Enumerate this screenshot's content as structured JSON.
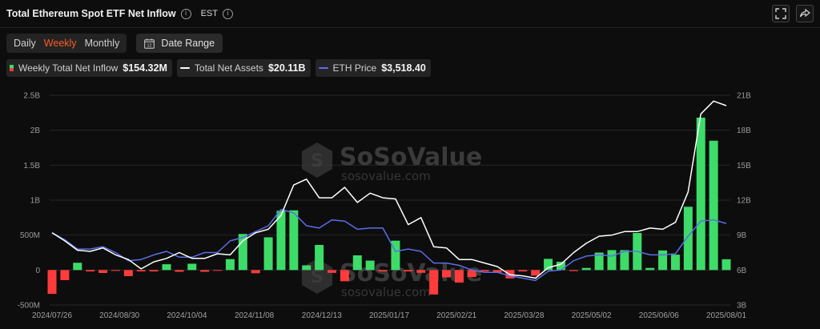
{
  "header": {
    "title": "Total Ethereum Spot ETF Net Inflow",
    "timezone": "EST"
  },
  "toolbar": {
    "tabs": [
      {
        "label": "Daily",
        "active": false
      },
      {
        "label": "Weekly",
        "active": true
      },
      {
        "label": "Monthly",
        "active": false
      }
    ],
    "date_range_label": "Date Range",
    "calendar_day": "12"
  },
  "legend": {
    "inflow": {
      "label": "Weekly Total Net Inflow",
      "value": "$154.32M"
    },
    "assets": {
      "label": "Total Net Assets",
      "value": "$20.11B"
    },
    "price": {
      "label": "ETH Price",
      "value": "$3,518.40"
    }
  },
  "watermark": {
    "brand": "SoSoValue",
    "url": "sosovalue.com"
  },
  "colors": {
    "positive": "#3ddc68",
    "negative": "#ff3b3b",
    "assets_line": "#ffffff",
    "price_line": "#5b6ee8",
    "accent": "#ff5a2a"
  },
  "chart_data": {
    "type": "bar",
    "left_axis": {
      "ticks": [
        "2.5B",
        "2B",
        "1.5B",
        "1B",
        "500M",
        "0",
        "-500M"
      ],
      "range": [
        -500000000,
        2500000000
      ]
    },
    "right_axis": {
      "ticks": [
        "21B",
        "18B",
        "15B",
        "12B",
        "9B",
        "6B",
        "3B"
      ],
      "range": [
        3000000000,
        21000000000
      ]
    },
    "x_tick_labels": [
      "2024/07/26",
      "2024/08/30",
      "2024/10/04",
      "2024/11/08",
      "2024/12/13",
      "2025/01/17",
      "2025/02/21",
      "2025/03/28",
      "2025/05/02",
      "2025/06/06",
      "2025/08/01"
    ],
    "series": [
      {
        "name": "Weekly Total Net Inflow",
        "axis": "left",
        "values": [
          -341000000,
          -145000000,
          104000000,
          -20000000,
          -42000000,
          -12000000,
          -87000000,
          -20000000,
          -20000000,
          83000000,
          -25000000,
          90000000,
          -25000000,
          -10000000,
          156000000,
          516000000,
          -46000000,
          468000000,
          848000000,
          854000000,
          67000000,
          359000000,
          -40000000,
          -160000000,
          210000000,
          135000000,
          -20000000,
          420000000,
          -20000000,
          -40000000,
          -350000000,
          -105000000,
          -180000000,
          -100000000,
          -20000000,
          -40000000,
          -120000000,
          -20000000,
          -80000000,
          160000000,
          118000000,
          -15000000,
          30000000,
          250000000,
          285000000,
          285000000,
          530000000,
          30000000,
          280000000,
          220000000,
          905000000,
          2180000000,
          1850000000,
          154320000
        ]
      },
      {
        "name": "Total Net Assets",
        "axis": "right",
        "values": [
          9200000000.0,
          8500000000.0,
          7700000000.0,
          7600000000.0,
          7900000000.0,
          7300000000.0,
          6900000000.0,
          6100000000.0,
          6700000000.0,
          7000000000.0,
          7500000000.0,
          7000000000.0,
          7000000000.0,
          7400000000.0,
          7300000000.0,
          8500000000.0,
          9200000000.0,
          9500000000.0,
          10700000000.0,
          13300000000.0,
          13800000000.0,
          12200000000.0,
          12200000000.0,
          13100000000.0,
          11800000000.0,
          12600000000.0,
          12200000000.0,
          12100000000.0,
          9900000000.0,
          10500000000.0,
          8000000000.0,
          7900000000.0,
          6900000000.0,
          6900000000.0,
          6600000000.0,
          6300000000.0,
          5600000000.0,
          5500000000.0,
          5300000000.0,
          6200000000.0,
          6500000000.0,
          7500000000.0,
          8300000000.0,
          8900000000.0,
          9000000000.0,
          9300000000.0,
          9300000000.0,
          9600000000.0,
          9500000000.0,
          10100000000.0,
          12700000000.0,
          19400000000.0,
          20500000000.0,
          20110000000.0
        ]
      },
      {
        "name": "ETH Price",
        "axis": "right",
        "values": [
          9200000000.0,
          8600000000.0,
          7800000000.0,
          7800000000.0,
          8000000000.0,
          7500000000.0,
          6800000000.0,
          6900000000.0,
          7300000000.0,
          7600000000.0,
          7100000000.0,
          7100000000.0,
          7500000000.0,
          7500000000.0,
          8500000000.0,
          8800000000.0,
          9300000000.0,
          9800000000.0,
          11200000000.0,
          10900000000.0,
          9800000000.0,
          9600000000.0,
          10300000000.0,
          10200000000.0,
          9500000000.0,
          9600000000.0,
          9600000000.0,
          7600000000.0,
          7800000000.0,
          7600000000.0,
          6600000000.0,
          6600000000.0,
          6400000000.0,
          6000000000.0,
          5800000000.0,
          5800000000.0,
          5500000000.0,
          5300000000.0,
          5100000000.0,
          5900000000.0,
          6000000000.0,
          6800000000.0,
          7200000000.0,
          7300000000.0,
          7200000000.0,
          7600000000.0,
          7600000000.0,
          7300000000.0,
          7300000000.0,
          7400000000.0,
          8900000000.0,
          10200000000.0,
          10300000000.0,
          10000000000.0
        ]
      }
    ]
  }
}
